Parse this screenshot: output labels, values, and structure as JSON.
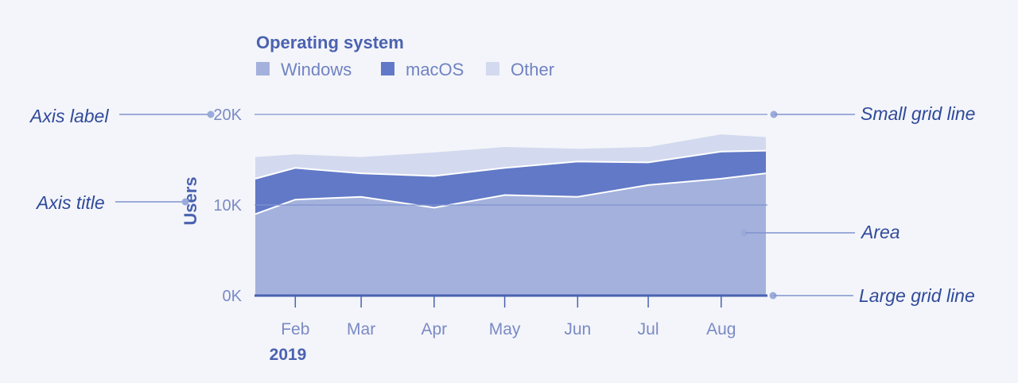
{
  "chart_data": {
    "type": "area",
    "stacked": true,
    "legend_title": "Operating system",
    "x_ticks": [
      "Feb",
      "Mar",
      "Apr",
      "May",
      "Jun",
      "Jul",
      "Aug"
    ],
    "x_sub_label": "2019",
    "x": [
      "2019-01-15",
      "2019-02-01",
      "2019-03-01",
      "2019-04-01",
      "2019-05-01",
      "2019-06-01",
      "2019-07-01",
      "2019-08-01",
      "2019-08-20"
    ],
    "series": [
      {
        "name": "Windows",
        "color": "#a3b1dc",
        "values": [
          9000,
          10600,
          10900,
          9700,
          11100,
          10900,
          12200,
          12900,
          13500
        ]
      },
      {
        "name": "macOS",
        "color": "#6179c7",
        "values": [
          3900,
          3500,
          2600,
          3500,
          3000,
          3900,
          2500,
          3000,
          2500
        ]
      },
      {
        "name": "Other",
        "color": "#d3daef",
        "values": [
          2400,
          1500,
          1800,
          2600,
          2300,
          1400,
          1700,
          1900,
          1500
        ]
      }
    ],
    "ylabel": "Users",
    "y_ticks": [
      "0K",
      "10K",
      "20K"
    ],
    "y_tick_values": [
      0,
      10000,
      20000
    ],
    "ylim": [
      0,
      20000
    ],
    "grid": true,
    "legend_position": "top-left"
  },
  "annotations": {
    "axis_label": "Axis label",
    "axis_title": "Axis title",
    "small_grid_line": "Small grid line",
    "area": "Area",
    "large_grid_line": "Large grid line"
  }
}
